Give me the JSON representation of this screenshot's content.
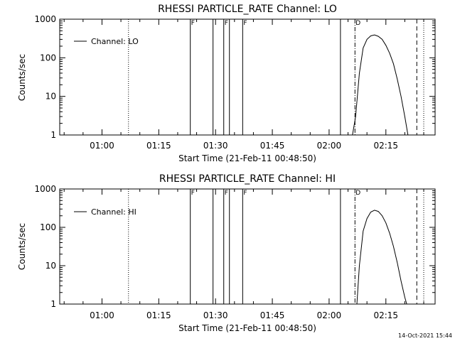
{
  "chart_data": [
    {
      "type": "line",
      "title": "RHESSI PARTICLE_RATE Channel: LO",
      "xlabel": "Start Time (21-Feb-11 00:48:50)",
      "ylabel": "Counts/sec",
      "y_scale": "log",
      "xlim": [
        "00:48:50",
        "02:28:00"
      ],
      "ylim": [
        1,
        1000
      ],
      "x_ticks": [
        "01:00",
        "01:15",
        "01:30",
        "01:45",
        "02:00",
        "02:15"
      ],
      "y_ticks": [
        "1",
        "10",
        "100",
        "1000"
      ],
      "legend": {
        "label": "Channel: LO",
        "position": "top-left"
      },
      "series": [
        {
          "name": "Channel: LO",
          "x": [
            "02:06:10",
            "02:07:00",
            "02:08:00",
            "02:09:00",
            "02:10:00",
            "02:11:00",
            "02:12:00",
            "02:13:00",
            "02:14:00",
            "02:15:00",
            "02:16:00",
            "02:17:00",
            "02:18:00",
            "02:19:00",
            "02:20:00",
            "02:20:50"
          ],
          "y": [
            1,
            3,
            40,
            180,
            300,
            370,
            390,
            360,
            300,
            210,
            130,
            70,
            28,
            10,
            3,
            1
          ]
        }
      ],
      "vlines": [
        {
          "x": "01:07:00",
          "style": "dotted"
        },
        {
          "x": "01:23:20",
          "style": "solid",
          "flag": "F"
        },
        {
          "x": "01:29:20",
          "style": "solid"
        },
        {
          "x": "01:32:10",
          "style": "solid",
          "flag": "F"
        },
        {
          "x": "01:33:40",
          "style": "solid"
        },
        {
          "x": "01:37:10",
          "style": "solid",
          "flag": "F"
        },
        {
          "x": "02:03:00",
          "style": "solid"
        },
        {
          "x": "02:06:50",
          "style": "dashdot",
          "flag": "D"
        },
        {
          "x": "02:23:10",
          "style": "dashed"
        },
        {
          "x": "02:25:00",
          "style": "dotted"
        }
      ]
    },
    {
      "type": "line",
      "title": "RHESSI PARTICLE_RATE Channel: HI",
      "xlabel": "Start Time (21-Feb-11 00:48:50)",
      "ylabel": "Counts/sec",
      "y_scale": "log",
      "xlim": [
        "00:48:50",
        "02:28:00"
      ],
      "ylim": [
        1,
        1000
      ],
      "x_ticks": [
        "01:00",
        "01:15",
        "01:30",
        "01:45",
        "02:00",
        "02:15"
      ],
      "y_ticks": [
        "1",
        "10",
        "100",
        "1000"
      ],
      "legend": {
        "label": "Channel: HI",
        "position": "top-left"
      },
      "series": [
        {
          "name": "Channel: HI",
          "x": [
            "02:07:20",
            "02:08:00",
            "02:09:00",
            "02:10:00",
            "02:11:00",
            "02:12:00",
            "02:13:00",
            "02:14:00",
            "02:15:00",
            "02:16:00",
            "02:17:00",
            "02:18:00",
            "02:19:00",
            "02:20:00",
            "02:20:30"
          ],
          "y": [
            1,
            10,
            80,
            170,
            250,
            280,
            260,
            200,
            130,
            70,
            32,
            12,
            4,
            1.5,
            1
          ]
        }
      ],
      "vlines": [
        {
          "x": "01:07:00",
          "style": "dotted"
        },
        {
          "x": "01:23:20",
          "style": "solid",
          "flag": "F"
        },
        {
          "x": "01:29:20",
          "style": "solid"
        },
        {
          "x": "01:32:10",
          "style": "solid",
          "flag": "F"
        },
        {
          "x": "01:33:40",
          "style": "solid"
        },
        {
          "x": "01:37:10",
          "style": "solid",
          "flag": "F"
        },
        {
          "x": "02:03:00",
          "style": "solid"
        },
        {
          "x": "02:06:50",
          "style": "dashdot",
          "flag": "D"
        },
        {
          "x": "02:23:10",
          "style": "dashed"
        },
        {
          "x": "02:25:00",
          "style": "dotted"
        }
      ]
    }
  ],
  "footer": {
    "timestamp": "14-Oct-2021 15:44"
  }
}
